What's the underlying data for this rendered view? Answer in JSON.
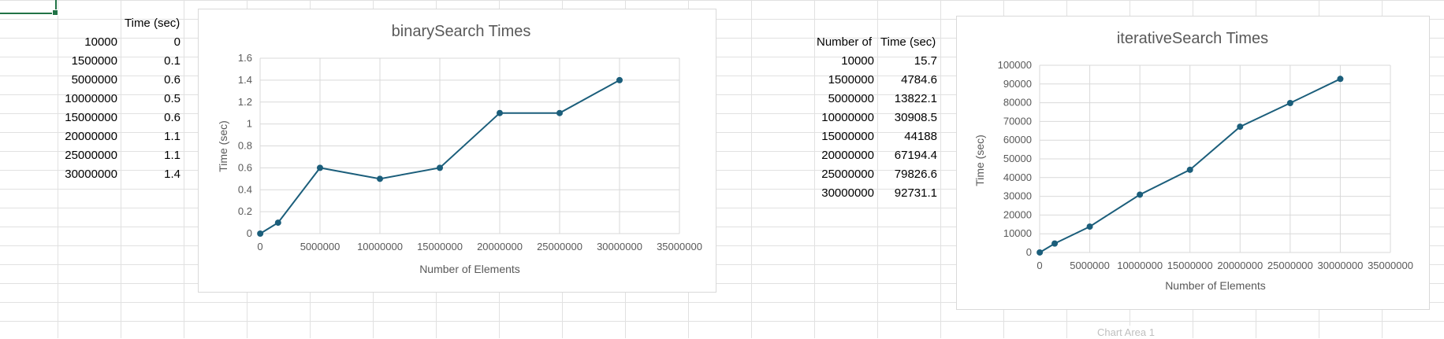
{
  "sheet": {
    "table1": {
      "header_time": "Time (sec)",
      "rows": [
        {
          "n": "10000",
          "t": "0"
        },
        {
          "n": "1500000",
          "t": "0.1"
        },
        {
          "n": "5000000",
          "t": "0.6"
        },
        {
          "n": "10000000",
          "t": "0.5"
        },
        {
          "n": "15000000",
          "t": "0.6"
        },
        {
          "n": "20000000",
          "t": "1.1"
        },
        {
          "n": "25000000",
          "t": "1.1"
        },
        {
          "n": "30000000",
          "t": "1.4"
        }
      ]
    },
    "table2": {
      "header_n": "Number of",
      "header_time": "Time (sec)",
      "rows": [
        {
          "n": "10000",
          "t": "15.7"
        },
        {
          "n": "1500000",
          "t": "4784.6"
        },
        {
          "n": "5000000",
          "t": "13822.1"
        },
        {
          "n": "10000000",
          "t": "30908.5"
        },
        {
          "n": "15000000",
          "t": "44188"
        },
        {
          "n": "20000000",
          "t": "67194.4"
        },
        {
          "n": "25000000",
          "t": "79826.6"
        },
        {
          "n": "30000000",
          "t": "92731.1"
        }
      ]
    },
    "tooltip": "Chart Area 1"
  },
  "colors": {
    "series": "#1b5e7b",
    "gridline": "#d9d9d9",
    "active_cell": "#217346"
  },
  "chart_data": [
    {
      "type": "scatter",
      "title": "binarySearch Times",
      "xlabel": "Number of Elements",
      "ylabel": "Time (sec)",
      "xlim": [
        0,
        35000000
      ],
      "ylim": [
        0,
        1.6
      ],
      "xticks": [
        "0",
        "5000000",
        "10000000",
        "15000000",
        "20000000",
        "25000000",
        "30000000",
        "35000000"
      ],
      "yticks": [
        "0",
        "0.2",
        "0.4",
        "0.6",
        "0.8",
        "1",
        "1.2",
        "1.4",
        "1.6"
      ],
      "grid": true,
      "lines": true,
      "x": [
        10000,
        1500000,
        5000000,
        10000000,
        15000000,
        20000000,
        25000000,
        30000000
      ],
      "y": [
        0,
        0.1,
        0.6,
        0.5,
        0.6,
        1.1,
        1.1,
        1.4
      ]
    },
    {
      "type": "scatter",
      "title": "iterativeSearch Times",
      "xlabel": "Number of Elements",
      "ylabel": "Time (sec)",
      "xlim": [
        0,
        35000000
      ],
      "ylim": [
        0,
        100000
      ],
      "xticks": [
        "0",
        "5000000",
        "10000000",
        "15000000",
        "20000000",
        "25000000",
        "30000000",
        "35000000"
      ],
      "yticks": [
        "0",
        "10000",
        "20000",
        "30000",
        "40000",
        "50000",
        "60000",
        "70000",
        "80000",
        "90000",
        "100000"
      ],
      "grid": true,
      "lines": true,
      "x": [
        10000,
        1500000,
        5000000,
        10000000,
        15000000,
        20000000,
        25000000,
        30000000
      ],
      "y": [
        15.7,
        4784.6,
        13822.1,
        30908.5,
        44188,
        67194.4,
        79826.6,
        92731.1
      ]
    }
  ]
}
